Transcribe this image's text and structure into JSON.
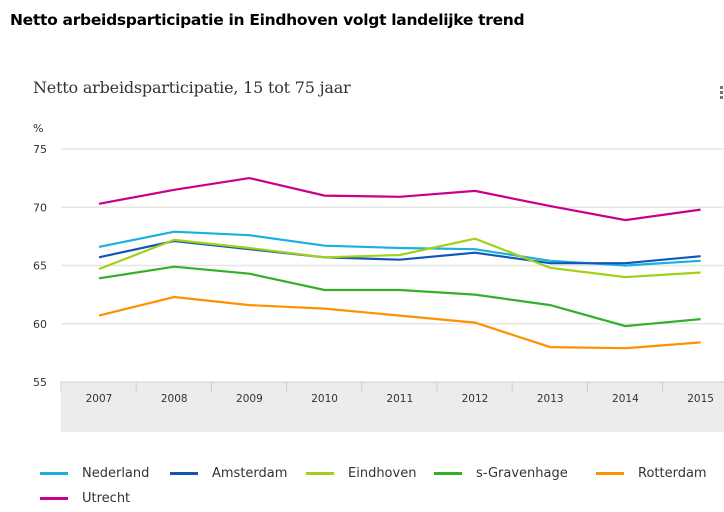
{
  "page": {
    "heading": "Netto arbeidsparticipatie in Eindhoven volgt landelijke trend"
  },
  "chart_data": {
    "type": "line",
    "title": "Netto arbeidsparticipatie, 15 tot 75 jaar",
    "ylabel": "%",
    "xlabel": "",
    "ylim": [
      55,
      75
    ],
    "yticks": [
      "55",
      "60",
      "65",
      "70",
      "75"
    ],
    "grid": true,
    "legend_position": "bottom",
    "categories": [
      "2007",
      "2008",
      "2009",
      "2010",
      "2011",
      "2012",
      "2013",
      "2014",
      "2015"
    ],
    "series": [
      {
        "name": "Nederland",
        "color": "#1ab0e0",
        "values": [
          66.6,
          67.9,
          67.6,
          66.7,
          66.5,
          66.4,
          65.4,
          65.0,
          65.4
        ]
      },
      {
        "name": "Amsterdam",
        "color": "#1456b8",
        "values": [
          65.7,
          67.1,
          66.4,
          65.7,
          65.5,
          66.1,
          65.2,
          65.2,
          65.8
        ]
      },
      {
        "name": "Eindhoven",
        "color": "#a3d11a",
        "values": [
          64.7,
          67.2,
          66.5,
          65.7,
          65.9,
          67.3,
          64.8,
          64.0,
          64.4
        ]
      },
      {
        "name": "s-Gravenhage",
        "color": "#33b02a",
        "values": [
          63.9,
          64.9,
          64.3,
          62.9,
          62.9,
          62.5,
          61.6,
          59.8,
          60.4
        ]
      },
      {
        "name": "Rotterdam",
        "color": "#ff9000",
        "values": [
          60.7,
          62.3,
          61.6,
          61.3,
          60.7,
          60.1,
          58.0,
          57.9,
          58.4
        ]
      },
      {
        "name": "Utrecht",
        "color": "#c8008c",
        "values": [
          70.3,
          71.5,
          72.5,
          71.0,
          70.9,
          71.4,
          70.1,
          68.9,
          69.8
        ]
      }
    ]
  },
  "menu": {
    "icon": "kebab-menu-icon"
  }
}
